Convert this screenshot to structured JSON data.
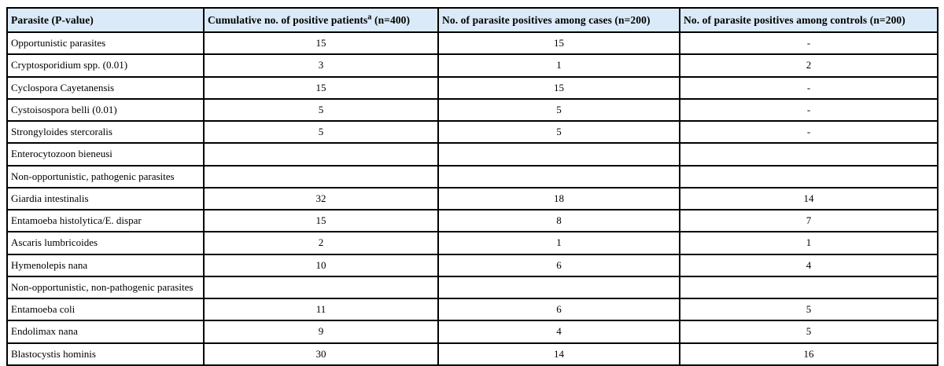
{
  "colors": {
    "header_background": "#dbeaf8",
    "border": "#000000",
    "body_background": "#ffffff",
    "text": "#000000"
  },
  "table": {
    "columns": [
      {
        "label": "Parasite (P-value)",
        "superscript": "",
        "suffix": ""
      },
      {
        "label": "Cumulative no. of positive patients",
        "superscript": "a",
        "suffix": " (n=400)"
      },
      {
        "label": "No. of parasite positives among cases (n=200)",
        "superscript": "",
        "suffix": ""
      },
      {
        "label": "No. of parasite positives among controls (n=200)",
        "superscript": "",
        "suffix": ""
      }
    ],
    "rows": [
      {
        "parasite": "Opportunistic parasites",
        "cumulative": "15",
        "cases": "15",
        "controls": "-"
      },
      {
        "parasite": "Cryptosporidium spp. (0.01)",
        "cumulative": "3",
        "cases": "1",
        "controls": "2"
      },
      {
        "parasite": "Cyclospora Cayetanensis",
        "cumulative": "15",
        "cases": "15",
        "controls": "-"
      },
      {
        "parasite": "Cystoisospora belli (0.01)",
        "cumulative": "5",
        "cases": "5",
        "controls": "-"
      },
      {
        "parasite": "Strongyloides stercoralis",
        "cumulative": "5",
        "cases": "5",
        "controls": "-"
      },
      {
        "parasite": "Enterocytozoon bieneusi",
        "cumulative": "",
        "cases": "",
        "controls": ""
      },
      {
        "parasite": "Non-opportunistic, pathogenic parasites",
        "cumulative": "",
        "cases": "",
        "controls": ""
      },
      {
        "parasite": "Giardia intestinalis",
        "cumulative": "32",
        "cases": "18",
        "controls": "14"
      },
      {
        "parasite": "Entamoeba histolytica/E. dispar",
        "cumulative": "15",
        "cases": "8",
        "controls": "7"
      },
      {
        "parasite": "Ascaris lumbricoides",
        "cumulative": "2",
        "cases": "1",
        "controls": "1"
      },
      {
        "parasite": "Hymenolepis nana",
        "cumulative": "10",
        "cases": "6",
        "controls": "4"
      },
      {
        "parasite": "Non-opportunistic, non-pathogenic parasites",
        "cumulative": "",
        "cases": "",
        "controls": ""
      },
      {
        "parasite": "Entamoeba coli",
        "cumulative": "11",
        "cases": "6",
        "controls": "5"
      },
      {
        "parasite": "Endolimax nana",
        "cumulative": "9",
        "cases": "4",
        "controls": "5"
      },
      {
        "parasite": "Blastocystis hominis",
        "cumulative": "30",
        "cases": "14",
        "controls": "16"
      }
    ]
  },
  "chart_data": {
    "type": "table",
    "title": "",
    "columns": [
      "Parasite (P-value)",
      "Cumulative no. of positive patients a (n=400)",
      "No. of parasite positives among cases (n=200)",
      "No. of parasite positives among controls (n=200)"
    ],
    "rows": [
      [
        "Opportunistic parasites",
        "15",
        "15",
        "-"
      ],
      [
        "Cryptosporidium spp. (0.01)",
        "3",
        "1",
        "2"
      ],
      [
        "Cyclospora Cayetanensis",
        "15",
        "15",
        "-"
      ],
      [
        "Cystoisospora belli (0.01)",
        "5",
        "5",
        "-"
      ],
      [
        "Strongyloides stercoralis",
        "5",
        "5",
        "-"
      ],
      [
        "Enterocytozoon bieneusi",
        "",
        "",
        ""
      ],
      [
        "Non-opportunistic, pathogenic parasites",
        "",
        "",
        ""
      ],
      [
        "Giardia intestinalis",
        "32",
        "18",
        "14"
      ],
      [
        "Entamoeba histolytica/E. dispar",
        "15",
        "8",
        "7"
      ],
      [
        "Ascaris lumbricoides",
        "2",
        "1",
        "1"
      ],
      [
        "Hymenolepis nana",
        "10",
        "6",
        "4"
      ],
      [
        "Non-opportunistic, non-pathogenic parasites",
        "",
        "",
        ""
      ],
      [
        "Entamoeba coli",
        "11",
        "6",
        "5"
      ],
      [
        "Endolimax nana",
        "9",
        "4",
        "5"
      ],
      [
        "Blastocystis hominis",
        "30",
        "14",
        "16"
      ]
    ]
  }
}
